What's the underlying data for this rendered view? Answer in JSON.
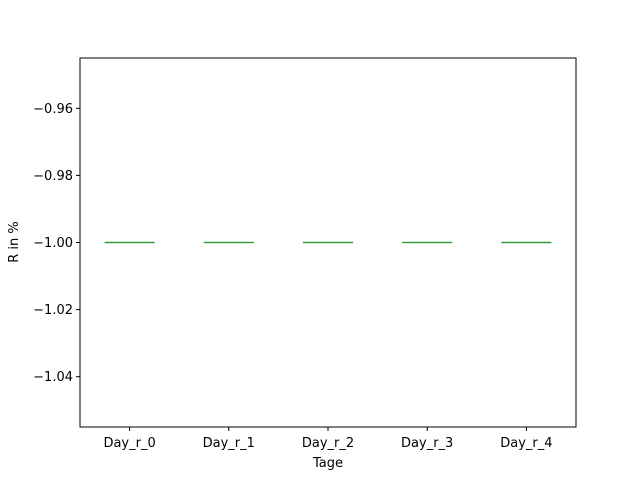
{
  "chart_data": {
    "type": "box",
    "title": "",
    "xlabel": "Tage",
    "ylabel": "R in %",
    "ylim": [
      -1.055,
      -0.945
    ],
    "yticks": [
      -0.96,
      -0.98,
      -1.0,
      -1.02,
      -1.04
    ],
    "ytick_labels": [
      "−0.96",
      "−0.98",
      "−1.00",
      "−1.02",
      "−1.04"
    ],
    "categories": [
      "Day_r_0",
      "Day_r_1",
      "Day_r_2",
      "Day_r_3",
      "Day_r_4"
    ],
    "values": [
      -1.0,
      -1.0,
      -1.0,
      -1.0,
      -1.0
    ],
    "grid": false,
    "colors": {
      "median": "#2ca02c",
      "box": "#1f77b4",
      "axis": "#000000"
    }
  }
}
